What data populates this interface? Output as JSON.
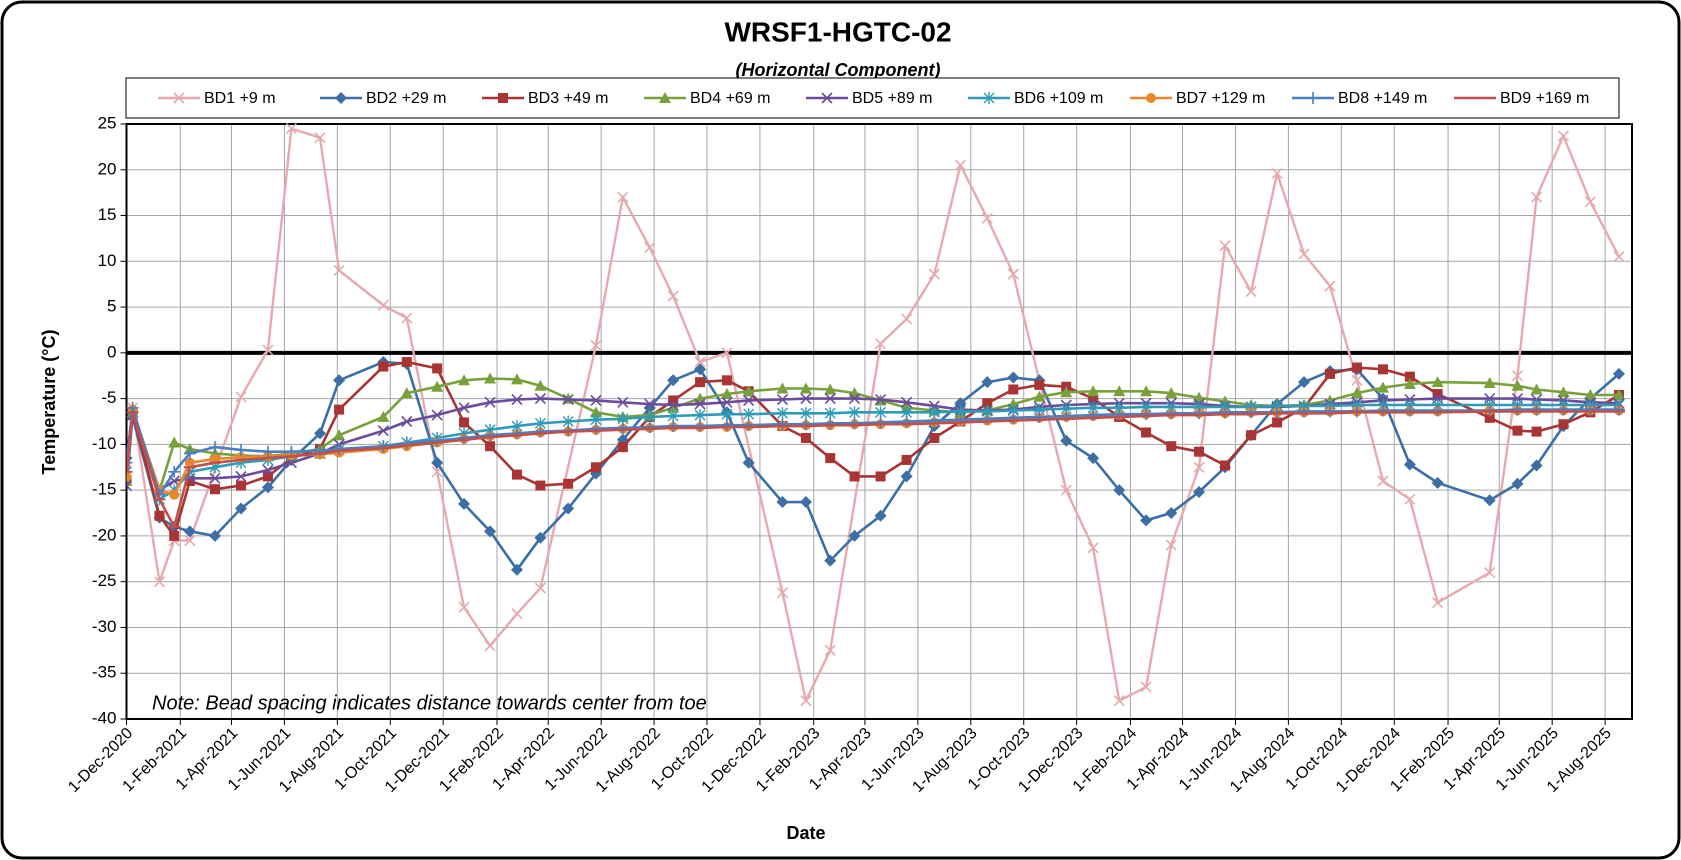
{
  "chart_data": {
    "type": "line",
    "title": "WRSF1-HGTC-02",
    "subtitle": "(Horizontal Component)",
    "xlabel": "Date",
    "ylabel": "Temperature (°C)",
    "annotation": "Note: Bead spacing indicates distance towards center from toe",
    "grid": true,
    "zero_line": true,
    "legend": "top",
    "xlim": [
      "2020-12-01",
      "2025-09-01"
    ],
    "ylim": [
      -40,
      25
    ],
    "yticks": [
      -40,
      -35,
      -30,
      -25,
      -20,
      -15,
      -10,
      -5,
      0,
      5,
      10,
      15,
      20,
      25
    ],
    "xticks": [
      {
        "value": "2020-12-01",
        "label": "1-Dec-2020"
      },
      {
        "value": "2021-02-01",
        "label": "1-Feb-2021"
      },
      {
        "value": "2021-04-01",
        "label": "1-Apr-2021"
      },
      {
        "value": "2021-06-01",
        "label": "1-Jun-2021"
      },
      {
        "value": "2021-08-01",
        "label": "1-Aug-2021"
      },
      {
        "value": "2021-10-01",
        "label": "1-Oct-2021"
      },
      {
        "value": "2021-12-01",
        "label": "1-Dec-2021"
      },
      {
        "value": "2022-02-01",
        "label": "1-Feb-2022"
      },
      {
        "value": "2022-04-01",
        "label": "1-Apr-2022"
      },
      {
        "value": "2022-06-01",
        "label": "1-Jun-2022"
      },
      {
        "value": "2022-08-01",
        "label": "1-Aug-2022"
      },
      {
        "value": "2022-10-01",
        "label": "1-Oct-2022"
      },
      {
        "value": "2022-12-01",
        "label": "1-Dec-2022"
      },
      {
        "value": "2023-02-01",
        "label": "1-Feb-2023"
      },
      {
        "value": "2023-04-01",
        "label": "1-Apr-2023"
      },
      {
        "value": "2023-06-01",
        "label": "1-Jun-2023"
      },
      {
        "value": "2023-08-01",
        "label": "1-Aug-2023"
      },
      {
        "value": "2023-10-01",
        "label": "1-Oct-2023"
      },
      {
        "value": "2023-12-01",
        "label": "1-Dec-2023"
      },
      {
        "value": "2024-02-01",
        "label": "1-Feb-2024"
      },
      {
        "value": "2024-04-01",
        "label": "1-Apr-2024"
      },
      {
        "value": "2024-06-01",
        "label": "1-Jun-2024"
      },
      {
        "value": "2024-08-01",
        "label": "1-Aug-2024"
      },
      {
        "value": "2024-10-01",
        "label": "1-Oct-2024"
      },
      {
        "value": "2024-12-01",
        "label": "1-Dec-2024"
      },
      {
        "value": "2025-02-01",
        "label": "1-Feb-2025"
      },
      {
        "value": "2025-04-01",
        "label": "1-Apr-2025"
      },
      {
        "value": "2025-06-01",
        "label": "1-Jun-2025"
      },
      {
        "value": "2025-08-01",
        "label": "1-Aug-2025"
      }
    ],
    "x": [
      "2020-12-01",
      "2020-12-08",
      "2021-01-08",
      "2021-01-25",
      "2021-02-12",
      "2021-03-13",
      "2021-04-12",
      "2021-05-13",
      "2021-06-09",
      "2021-07-12",
      "2021-08-03",
      "2021-09-23",
      "2021-10-20",
      "2021-11-24",
      "2021-12-25",
      "2022-01-24",
      "2022-02-24",
      "2022-03-23",
      "2022-04-24",
      "2022-05-26",
      "2022-06-26",
      "2022-07-27",
      "2022-08-23",
      "2022-09-23",
      "2022-10-24",
      "2022-11-18",
      "2022-12-27",
      "2023-01-23",
      "2023-02-20",
      "2023-03-20",
      "2023-04-19",
      "2023-05-19",
      "2023-06-20",
      "2023-07-20",
      "2023-08-20",
      "2023-09-19",
      "2023-10-19",
      "2023-11-19",
      "2023-12-20",
      "2024-01-19",
      "2024-02-19",
      "2024-03-19",
      "2024-04-20",
      "2024-05-20",
      "2024-06-19",
      "2024-07-19",
      "2024-08-19",
      "2024-09-18",
      "2024-10-19",
      "2024-11-18",
      "2024-12-19",
      "2025-01-20",
      "2025-03-21",
      "2025-04-22",
      "2025-05-14",
      "2025-06-14",
      "2025-07-15",
      "2025-08-17"
    ],
    "series": [
      {
        "name": "BD1 +9 m",
        "color": "#e6a9ae",
        "marker": "x",
        "x": [
          "2020-12-01",
          "2020-12-08",
          "2021-01-08",
          "2021-01-25",
          "2021-02-12",
          "2021-04-12",
          "2021-05-13",
          "2021-06-09",
          "2021-07-12",
          "2021-08-03",
          "2021-09-23",
          "2021-10-20",
          "2021-11-24",
          "2021-12-25",
          "2022-01-24",
          "2022-02-24",
          "2022-03-23",
          "2022-05-26",
          "2022-06-26",
          "2022-07-27",
          "2022-08-23",
          "2022-09-23",
          "2022-10-24",
          "2022-12-27",
          "2023-01-23",
          "2023-02-20",
          "2023-04-19",
          "2023-05-19",
          "2023-06-20",
          "2023-07-20",
          "2023-08-20",
          "2023-09-19",
          "2023-11-19",
          "2023-12-20",
          "2024-01-19",
          "2024-02-19",
          "2024-03-19",
          "2024-04-20",
          "2024-05-20",
          "2024-06-19",
          "2024-07-19",
          "2024-08-19",
          "2024-09-18",
          "2024-10-19",
          "2024-11-18",
          "2024-12-19",
          "2025-01-20",
          "2025-03-21",
          "2025-04-22",
          "2025-05-14",
          "2025-06-14",
          "2025-07-15",
          "2025-08-17"
        ],
        "values": [
          -12,
          -6,
          -25,
          -20.5,
          -20.5,
          -4.8,
          0.3,
          24.5,
          23.5,
          9,
          5.2,
          3.8,
          -13,
          -27.8,
          -32,
          -28.5,
          -25.7,
          0.8,
          17,
          11.5,
          6.2,
          -1,
          0,
          -26.2,
          -38,
          -32.5,
          1,
          3.7,
          8.6,
          20.5,
          14.7,
          8.6,
          -15,
          -21.3,
          -38,
          -36.5,
          -21,
          -12.5,
          11.7,
          6.7,
          19.6,
          10.8,
          7.3,
          -3,
          -14,
          -16,
          -27.3,
          -24,
          -2.5,
          17,
          23.7,
          16.5,
          10.5
        ]
      },
      {
        "name": "BD2 +29 m",
        "color": "#3b6fa6",
        "marker": "diamond",
        "values": [
          -11.5,
          -7,
          -18,
          -19,
          -19.5,
          -20,
          -17,
          -14.7,
          -11.7,
          -8.8,
          -3,
          -1,
          -1.2,
          -12,
          -16.5,
          -19.5,
          -23.7,
          -20.2,
          -17,
          -13.2,
          -9.5,
          -6,
          -3,
          -1.8,
          -6.5,
          -12,
          -16.3,
          -16.3,
          -22.7,
          -20,
          -17.8,
          -13.5,
          -8,
          -5.5,
          -3.2,
          -2.7,
          -3,
          -9.6,
          -11.5,
          -15,
          -18.3,
          -17.5,
          -15.2,
          -12.5,
          -9,
          -5.6,
          -3.2,
          -2,
          -1.8,
          -5,
          -12.2,
          -14.2,
          -16.1,
          -14.3,
          -12.3,
          -8,
          -5,
          -2.3
        ]
      },
      {
        "name": "BD3 +49 m",
        "color": "#a83434",
        "marker": "square",
        "values": [
          -14,
          -6.5,
          -17.8,
          -20,
          -14,
          -14.9,
          -14.5,
          -13.5,
          -11.5,
          -10.5,
          -6.2,
          -1.5,
          -1,
          -1.7,
          -7.6,
          -10.2,
          -13.3,
          -14.5,
          -14.3,
          -12.5,
          -10.3,
          -7,
          -5.2,
          -3.2,
          -3,
          -4.2,
          -8,
          -9.3,
          -11.5,
          -13.5,
          -13.5,
          -11.7,
          -9.3,
          -7.5,
          -5.5,
          -4,
          -3.5,
          -3.7,
          -5,
          -7,
          -8.7,
          -10.2,
          -10.8,
          -12.3,
          -9,
          -7.6,
          -6,
          -2.3,
          -1.6,
          -1.8,
          -2.6,
          -4.5,
          -7.1,
          -8.5,
          -8.6,
          -7.8,
          -6.5,
          -4.6
        ]
      },
      {
        "name": "BD4 +69 m",
        "color": "#78a13b",
        "marker": "triangle",
        "values": [
          -14,
          -6.5,
          -15,
          -9.8,
          -10.5,
          -11,
          -11.2,
          -11.3,
          -11,
          -10.5,
          -9,
          -7,
          -4.4,
          -3.7,
          -3,
          -2.8,
          -2.9,
          -3.6,
          -5,
          -6.5,
          -7,
          -6.8,
          -6,
          -5,
          -4.5,
          -4.2,
          -3.9,
          -3.9,
          -4,
          -4.4,
          -5.2,
          -6,
          -6.3,
          -6.5,
          -6.3,
          -5.6,
          -4.8,
          -4.3,
          -4.2,
          -4.2,
          -4.2,
          -4.4,
          -4.9,
          -5.3,
          -5.7,
          -5.8,
          -5.7,
          -5.2,
          -4.4,
          -3.8,
          -3.4,
          -3.2,
          -3.3,
          -3.6,
          -4,
          -4.3,
          -4.6,
          -4.6
        ]
      },
      {
        "name": "BD5 +89 m",
        "color": "#6b4b9b",
        "marker": "x",
        "values": [
          -14.5,
          -6.8,
          -15,
          -14,
          -13.7,
          -13.7,
          -13.5,
          -12.8,
          -12,
          -11,
          -10,
          -8.5,
          -7.5,
          -6.8,
          -6,
          -5.4,
          -5.1,
          -5,
          -5.1,
          -5.2,
          -5.4,
          -5.6,
          -5.7,
          -5.6,
          -5.4,
          -5.2,
          -5.1,
          -5,
          -5,
          -5,
          -5.1,
          -5.4,
          -5.8,
          -6.2,
          -6.3,
          -6.2,
          -5.9,
          -5.7,
          -5.6,
          -5.5,
          -5.5,
          -5.5,
          -5.6,
          -5.8,
          -5.9,
          -5.9,
          -5.8,
          -5.6,
          -5.4,
          -5.2,
          -5.1,
          -5,
          -5,
          -5,
          -5.1,
          -5.2,
          -5.4,
          -5.5
        ]
      },
      {
        "name": "BD6 +109 m",
        "color": "#2e9cb6",
        "marker": "star",
        "values": [
          -13,
          -6.5,
          -16,
          -15,
          -13,
          -12.5,
          -12,
          -11.7,
          -11.3,
          -11,
          -10.6,
          -10.2,
          -9.8,
          -9.3,
          -8.8,
          -8.4,
          -8,
          -7.7,
          -7.5,
          -7.3,
          -7.2,
          -7,
          -6.9,
          -6.8,
          -6.7,
          -6.7,
          -6.6,
          -6.6,
          -6.6,
          -6.5,
          -6.5,
          -6.5,
          -6.5,
          -6.4,
          -6.4,
          -6.3,
          -6.2,
          -6.1,
          -6,
          -6,
          -5.9,
          -5.9,
          -5.9,
          -5.9,
          -5.9,
          -5.8,
          -5.8,
          -5.8,
          -5.7,
          -5.7,
          -5.7,
          -5.7,
          -5.7,
          -5.7,
          -5.7,
          -5.7,
          -5.7,
          -5.7
        ]
      },
      {
        "name": "BD7 +129 m",
        "color": "#e8872b",
        "marker": "circle",
        "values": [
          -13.5,
          -6.2,
          -15,
          -15.5,
          -12,
          -11.6,
          -11.4,
          -11.3,
          -11.2,
          -11.1,
          -10.9,
          -10.5,
          -10.2,
          -9.8,
          -9.4,
          -9.1,
          -8.9,
          -8.7,
          -8.6,
          -8.4,
          -8.3,
          -8.2,
          -8.1,
          -8.1,
          -8.1,
          -8,
          -8,
          -7.9,
          -7.9,
          -7.8,
          -7.8,
          -7.7,
          -7.6,
          -7.5,
          -7.4,
          -7.3,
          -7.1,
          -7,
          -6.9,
          -6.8,
          -6.7,
          -6.7,
          -6.6,
          -6.6,
          -6.5,
          -6.5,
          -6.5,
          -6.4,
          -6.4,
          -6.4,
          -6.4,
          -6.4,
          -6.3,
          -6.3,
          -6.3,
          -6.3,
          -6.3,
          -6.3
        ]
      },
      {
        "name": "BD8 +149 m",
        "color": "#4a80c3",
        "marker": "plus",
        "values": [
          -12,
          -6,
          -15.5,
          -13,
          -11,
          -10.3,
          -10.6,
          -10.8,
          -10.8,
          -10.7,
          -10.5,
          -10.2,
          -9.9,
          -9.6,
          -9.3,
          -9,
          -8.8,
          -8.6,
          -8.5,
          -8.3,
          -8.2,
          -8.1,
          -8,
          -8,
          -7.9,
          -7.9,
          -7.8,
          -7.8,
          -7.7,
          -7.7,
          -7.6,
          -7.5,
          -7.4,
          -7.3,
          -7.2,
          -7.1,
          -7,
          -6.9,
          -6.8,
          -6.7,
          -6.7,
          -6.6,
          -6.6,
          -6.5,
          -6.5,
          -6.5,
          -6.4,
          -6.4,
          -6.4,
          -6.3,
          -6.3,
          -6.3,
          -6.3,
          -6.2,
          -6.2,
          -6.2,
          -6.2,
          -6.2
        ]
      },
      {
        "name": "BD9 +169 m",
        "color": "#c0504d",
        "marker": "dash",
        "values": [
          -13,
          -6.5,
          -16,
          -19,
          -12.5,
          -12,
          -11.7,
          -11.5,
          -11.3,
          -11,
          -10.7,
          -10.4,
          -10.1,
          -9.8,
          -9.5,
          -9.2,
          -9,
          -8.8,
          -8.6,
          -8.5,
          -8.4,
          -8.3,
          -8.2,
          -8.2,
          -8.1,
          -8.1,
          -8,
          -8,
          -7.9,
          -7.9,
          -7.8,
          -7.8,
          -7.7,
          -7.6,
          -7.5,
          -7.4,
          -7.3,
          -7.2,
          -7.1,
          -7,
          -6.9,
          -6.8,
          -6.8,
          -6.7,
          -6.7,
          -6.6,
          -6.6,
          -6.6,
          -6.5,
          -6.5,
          -6.5,
          -6.5,
          -6.4,
          -6.4,
          -6.4,
          -6.4,
          -6.4,
          -6.4
        ]
      }
    ]
  }
}
